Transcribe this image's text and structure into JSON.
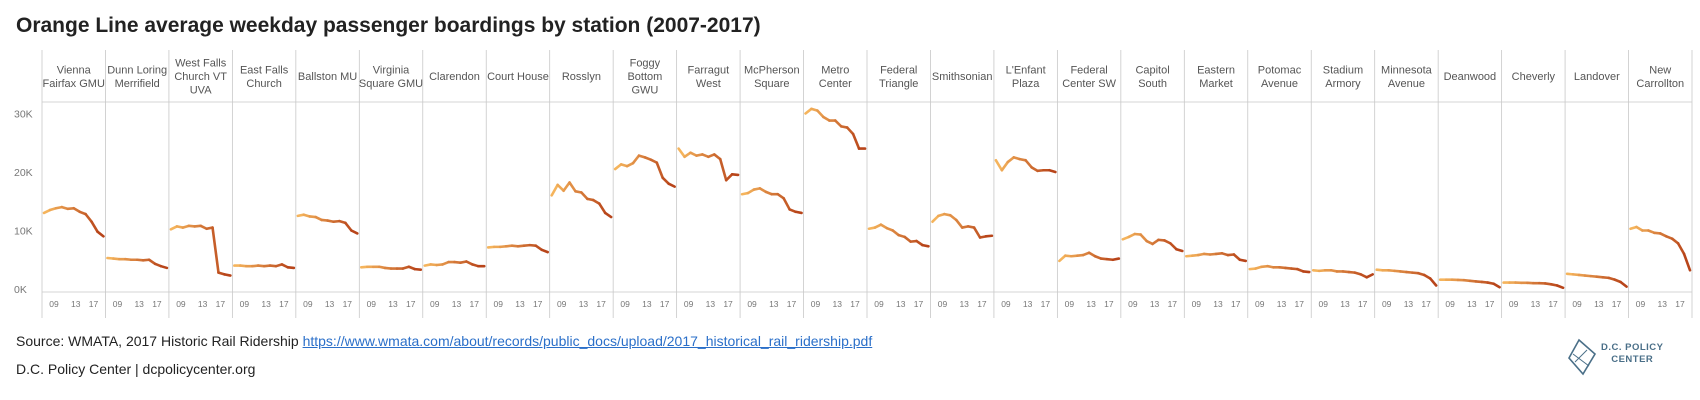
{
  "title": "Orange Line average weekday passenger boardings by station (2007-2017)",
  "source": {
    "prefix": "Source: WMATA, 2017 Historic Rail Ridership ",
    "link": "https://www.wmata.com/about/records/public_docs/upload/2017_historical_rail_ridership.pdf"
  },
  "credit": "D.C. Policy Center  |  dcpolicycenter.org",
  "logo": {
    "line1": "D.C. POLICY",
    "line2": "CENTER"
  },
  "colors": {
    "line_start": "#f5b45c",
    "line_end": "#b8451a",
    "grid": "#c8c8c8",
    "axis_text": "#777777",
    "header_text": "#555555"
  },
  "chart_data": {
    "type": "line",
    "y_ticks": [
      "30K",
      "20K",
      "10K",
      "0K"
    ],
    "y_tick_values": [
      30000,
      20000,
      10000,
      0
    ],
    "ylim": [
      0,
      33000
    ],
    "x_years": [
      2007,
      2008,
      2009,
      2010,
      2011,
      2012,
      2013,
      2014,
      2015,
      2016,
      2017
    ],
    "x_tick_labels": [
      "09",
      "13",
      "17"
    ],
    "stations": [
      {
        "name": [
          "Vienna",
          "Fairfax GMU"
        ],
        "values": [
          13000,
          13500,
          13800,
          14000,
          13700,
          13800,
          13200,
          12800,
          11500,
          9800,
          9000
        ]
      },
      {
        "name": [
          "Dunn Loring",
          "Merrifield"
        ],
        "values": [
          5300,
          5200,
          5100,
          5100,
          5000,
          5000,
          4900,
          5000,
          4300,
          3900,
          3600
        ]
      },
      {
        "name": [
          "West Falls",
          "Church VT",
          "UVA"
        ],
        "values": [
          10200,
          10700,
          10500,
          10800,
          10700,
          10800,
          10300,
          10500,
          2800,
          2500,
          2300
        ]
      },
      {
        "name": [
          "East Falls",
          "Church"
        ],
        "values": [
          4000,
          4000,
          3900,
          3900,
          4000,
          3900,
          4000,
          3900,
          4200,
          3700,
          3600
        ]
      },
      {
        "name": [
          "Ballston MU"
        ],
        "values": [
          12500,
          12700,
          12400,
          12300,
          11800,
          11700,
          11500,
          11600,
          11300,
          10000,
          9500
        ]
      },
      {
        "name": [
          "Virginia",
          "Square GMU"
        ],
        "values": [
          3700,
          3800,
          3800,
          3800,
          3600,
          3500,
          3500,
          3500,
          3800,
          3400,
          3300
        ]
      },
      {
        "name": [
          "Clarendon"
        ],
        "values": [
          4000,
          4200,
          4100,
          4200,
          4600,
          4600,
          4500,
          4700,
          4200,
          3900,
          3900
        ]
      },
      {
        "name": [
          "Court House"
        ],
        "values": [
          7100,
          7200,
          7200,
          7300,
          7400,
          7300,
          7400,
          7500,
          7400,
          6700,
          6300
        ]
      },
      {
        "name": [
          "Rosslyn"
        ],
        "values": [
          16000,
          17800,
          16800,
          18200,
          16700,
          16500,
          15400,
          15200,
          14600,
          13000,
          12300
        ]
      },
      {
        "name": [
          "Foggy",
          "Bottom",
          "GWU"
        ],
        "values": [
          20500,
          21300,
          21000,
          21500,
          22800,
          22500,
          22100,
          21600,
          19000,
          18000,
          17500
        ]
      },
      {
        "name": [
          "Farragut",
          "West"
        ],
        "values": [
          24000,
          22600,
          23300,
          22800,
          23000,
          22600,
          23000,
          22200,
          18600,
          19600,
          19500
        ]
      },
      {
        "name": [
          "McPherson",
          "Square"
        ],
        "values": [
          16200,
          16400,
          17000,
          17200,
          16600,
          16200,
          16200,
          15500,
          13600,
          13200,
          13000
        ]
      },
      {
        "name": [
          "Metro",
          "Center"
        ],
        "values": [
          30000,
          30800,
          30500,
          29400,
          28800,
          28800,
          27800,
          27600,
          26500,
          24000,
          24000
        ]
      },
      {
        "name": [
          "Federal",
          "Triangle"
        ],
        "values": [
          10300,
          10500,
          11000,
          10400,
          10000,
          9200,
          8900,
          8100,
          8200,
          7500,
          7300
        ]
      },
      {
        "name": [
          "Smithsonian"
        ],
        "values": [
          11500,
          12500,
          12800,
          12600,
          11800,
          10500,
          10700,
          10500,
          8800,
          9000,
          9100
        ]
      },
      {
        "name": [
          "L'Enfant",
          "Plaza"
        ],
        "values": [
          22000,
          20300,
          21700,
          22500,
          22200,
          22000,
          20800,
          20200,
          20300,
          20300,
          20000
        ]
      },
      {
        "name": [
          "Federal",
          "Center SW"
        ],
        "values": [
          4800,
          5700,
          5600,
          5700,
          5800,
          6200,
          5600,
          5200,
          5100,
          5000,
          5200
        ]
      },
      {
        "name": [
          "Capitol",
          "South"
        ],
        "values": [
          8500,
          8900,
          9400,
          9300,
          8200,
          7700,
          8400,
          8300,
          7800,
          6800,
          6500
        ]
      },
      {
        "name": [
          "Eastern",
          "Market"
        ],
        "values": [
          5600,
          5700,
          5800,
          6000,
          5900,
          6000,
          6100,
          5800,
          5900,
          5000,
          4800
        ]
      },
      {
        "name": [
          "Potomac",
          "Avenue"
        ],
        "values": [
          3400,
          3500,
          3800,
          3900,
          3700,
          3700,
          3600,
          3500,
          3400,
          3000,
          2900
        ]
      },
      {
        "name": [
          "Stadium",
          "Armory"
        ],
        "values": [
          3200,
          3100,
          3200,
          3200,
          3000,
          3000,
          2900,
          2800,
          2500,
          2000,
          2500
        ]
      },
      {
        "name": [
          "Minnesota",
          "Avenue"
        ],
        "values": [
          3300,
          3200,
          3200,
          3100,
          3000,
          2900,
          2800,
          2700,
          2400,
          1800,
          600
        ]
      },
      {
        "name": [
          "Deanwood"
        ],
        "values": [
          1600,
          1600,
          1600,
          1550,
          1500,
          1400,
          1300,
          1200,
          1100,
          900,
          300
        ]
      },
      {
        "name": [
          "Cheverly"
        ],
        "values": [
          1100,
          1100,
          1100,
          1050,
          1050,
          1000,
          1000,
          950,
          800,
          600,
          200
        ]
      },
      {
        "name": [
          "Landover"
        ],
        "values": [
          2600,
          2500,
          2400,
          2300,
          2200,
          2100,
          2000,
          1900,
          1600,
          1200,
          400
        ]
      },
      {
        "name": [
          "New",
          "Carrollton"
        ],
        "values": [
          10300,
          10600,
          10000,
          10000,
          9600,
          9500,
          9000,
          8600,
          7800,
          6000,
          3200
        ]
      }
    ]
  }
}
